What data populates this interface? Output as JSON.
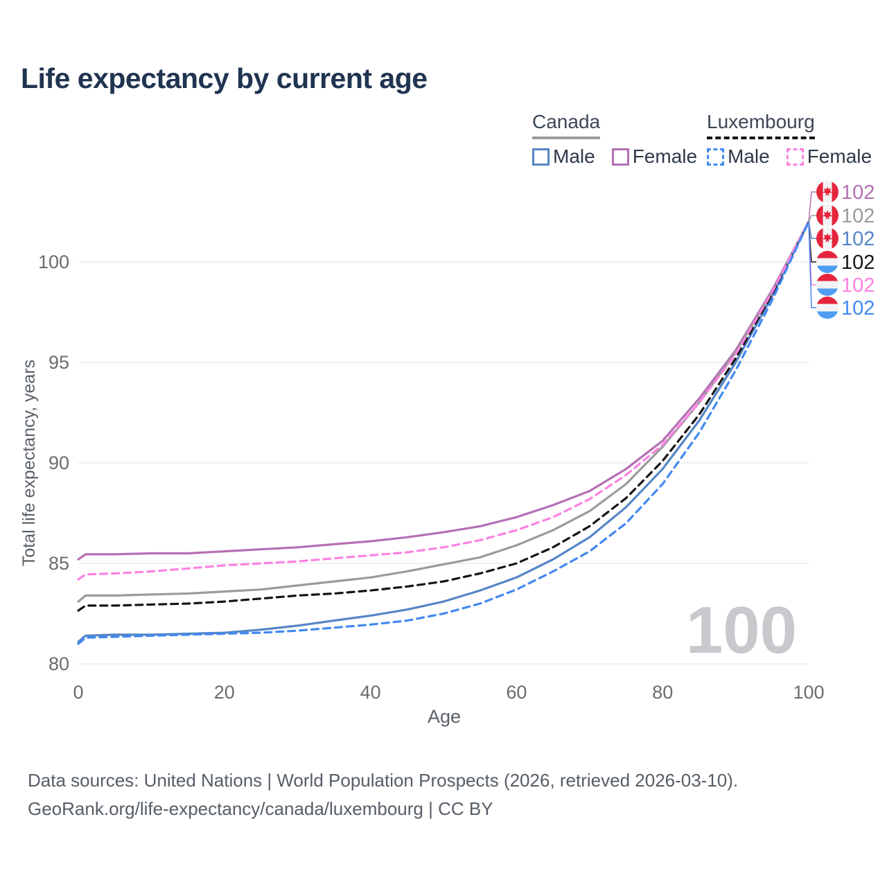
{
  "title": "Life expectancy by current age",
  "watermark": "100",
  "legend": {
    "groups": [
      {
        "label": "Canada",
        "underline": {
          "style": "solid",
          "color": "#9b9b9b"
        },
        "items": [
          {
            "label": "Male",
            "color": "#5585c6",
            "dashed": false
          },
          {
            "label": "Female",
            "color": "#b56fb4",
            "dashed": false
          }
        ]
      },
      {
        "label": "Luxembourg",
        "underline": {
          "style": "dashed",
          "color": "#141414"
        },
        "items": [
          {
            "label": "Male",
            "color": "#4288f2",
            "dashed": true
          },
          {
            "label": "Female",
            "color": "#fb82e2",
            "dashed": true
          }
        ]
      }
    ]
  },
  "footer": {
    "line1": "Data sources: United Nations | World Population Prospects (2026, retrieved 2026-03-10).",
    "line2": "GeoRank.org/life-expectancy/canada/luxembourg | CC BY"
  },
  "chart_data": {
    "type": "line",
    "title": "Life expectancy by current age",
    "xlabel": "Age",
    "ylabel": "Total life expectancy, years",
    "xlim": [
      0,
      100
    ],
    "ylim": [
      79.3,
      103.4
    ],
    "x_ticks": [
      0,
      20,
      40,
      60,
      80,
      100
    ],
    "y_ticks": [
      80,
      85,
      90,
      95,
      100
    ],
    "grid": "horizontal-light",
    "legend_position": "top-right",
    "x": [
      0,
      1,
      5,
      10,
      15,
      20,
      25,
      30,
      35,
      40,
      45,
      50,
      55,
      60,
      65,
      70,
      75,
      80,
      85,
      90,
      95,
      100
    ],
    "series": [
      {
        "name": "Canada Female",
        "country": "Canada",
        "sex": "Female",
        "color": "#b56fb4",
        "dashed": false,
        "flag": "canada",
        "end_label": "102",
        "values": [
          85.2,
          85.45,
          85.45,
          85.5,
          85.5,
          85.6,
          85.7,
          85.8,
          85.95,
          86.1,
          86.3,
          86.55,
          86.85,
          87.3,
          87.9,
          88.6,
          89.7,
          91.1,
          93.2,
          95.6,
          98.6,
          102
        ]
      },
      {
        "name": "Canada All",
        "country": "Canada",
        "sex": "All",
        "color": "#9b9b9b",
        "dashed": false,
        "flag": "canada",
        "end_label": "102",
        "values": [
          83.1,
          83.4,
          83.4,
          83.45,
          83.5,
          83.6,
          83.7,
          83.9,
          84.1,
          84.3,
          84.6,
          84.95,
          85.3,
          85.9,
          86.65,
          87.6,
          88.95,
          90.8,
          93.0,
          95.5,
          98.5,
          102
        ]
      },
      {
        "name": "Canada Male",
        "country": "Canada",
        "sex": "Male",
        "color": "#5585c6",
        "dashed": false,
        "flag": "canada",
        "end_label": "102",
        "values": [
          81.1,
          81.4,
          81.45,
          81.45,
          81.5,
          81.55,
          81.7,
          81.9,
          82.15,
          82.4,
          82.7,
          83.1,
          83.65,
          84.3,
          85.2,
          86.3,
          87.8,
          89.7,
          92.1,
          95.0,
          98.3,
          102
        ]
      },
      {
        "name": "Luxembourg All",
        "country": "Luxembourg",
        "sex": "All",
        "color": "#141414",
        "dashed": true,
        "flag": "luxembourg",
        "end_label": "102",
        "values": [
          82.65,
          82.9,
          82.9,
          82.95,
          83.0,
          83.1,
          83.25,
          83.4,
          83.5,
          83.65,
          83.85,
          84.1,
          84.5,
          85.0,
          85.8,
          86.85,
          88.25,
          90.1,
          92.4,
          95.2,
          98.4,
          102
        ]
      },
      {
        "name": "Luxembourg Female",
        "country": "Luxembourg",
        "sex": "Female",
        "color": "#fb82e2",
        "dashed": true,
        "flag": "luxembourg",
        "end_label": "102",
        "values": [
          84.2,
          84.45,
          84.5,
          84.6,
          84.75,
          84.9,
          85.0,
          85.1,
          85.25,
          85.4,
          85.55,
          85.8,
          86.15,
          86.65,
          87.3,
          88.2,
          89.4,
          90.9,
          93.0,
          95.4,
          98.5,
          102
        ]
      },
      {
        "name": "Luxembourg Male",
        "country": "Luxembourg",
        "sex": "Male",
        "color": "#4288f2",
        "dashed": true,
        "flag": "luxembourg",
        "end_label": "102",
        "values": [
          81.0,
          81.3,
          81.35,
          81.4,
          81.45,
          81.5,
          81.55,
          81.65,
          81.8,
          81.95,
          82.15,
          82.5,
          83.0,
          83.7,
          84.6,
          85.6,
          87.0,
          88.95,
          91.5,
          94.6,
          98.1,
          102
        ]
      }
    ],
    "colors": {
      "grid": "#ececef",
      "tick_label": "#6b6b70",
      "axis_title": "#5a6068",
      "flag_red": "#e5253d",
      "flag_white": "#f2f3f5",
      "flag_blue": "#4f9df3"
    }
  }
}
